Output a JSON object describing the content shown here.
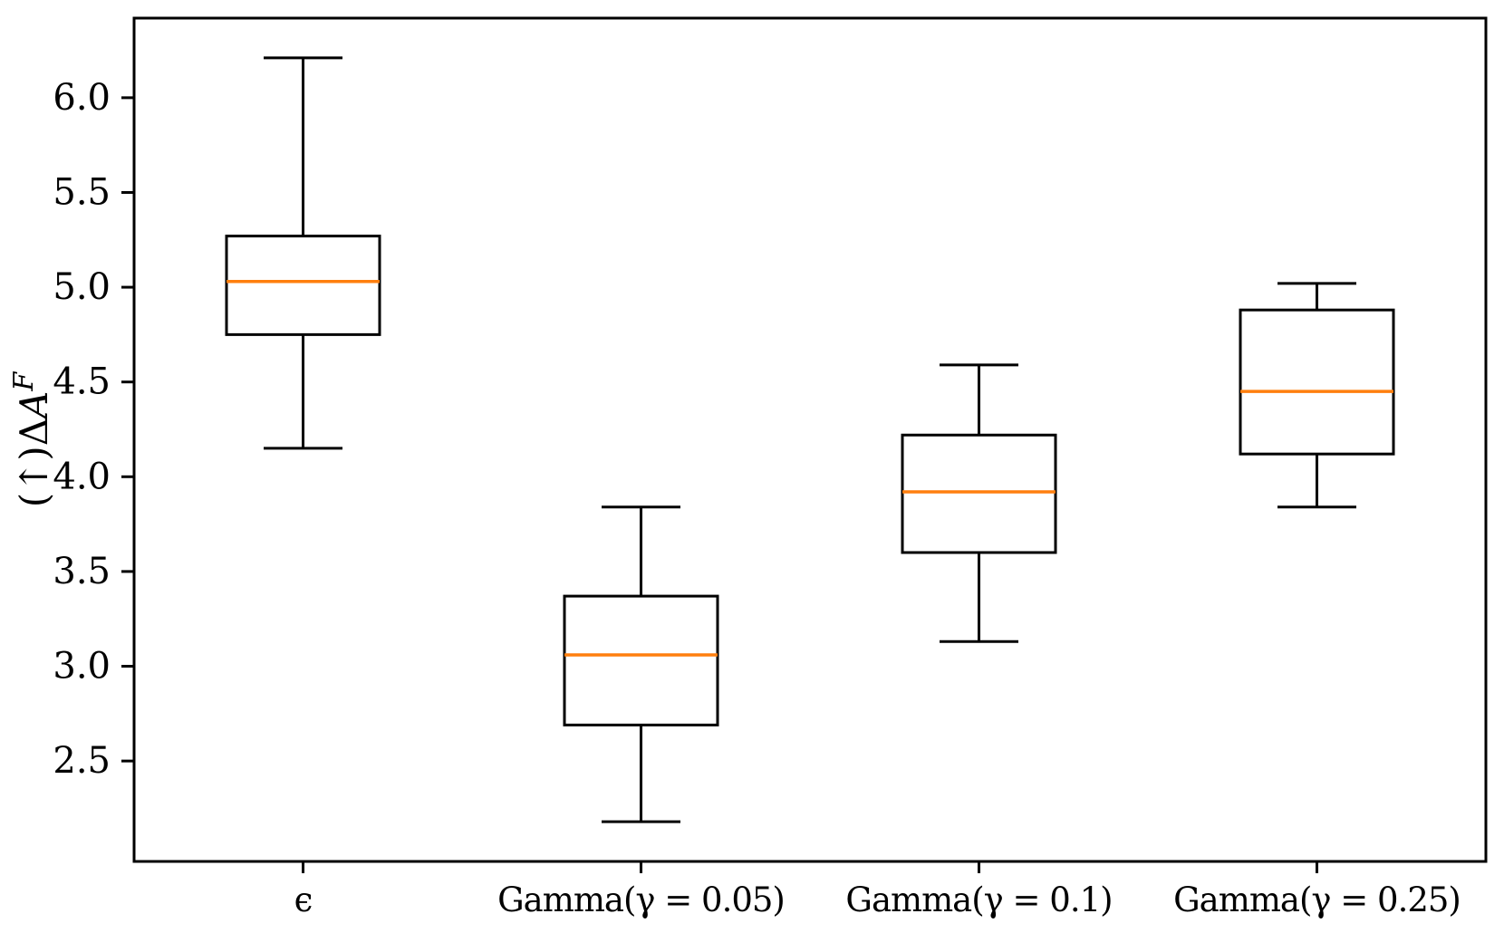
{
  "figure": {
    "background": "#ffffff"
  },
  "chart_data": {
    "type": "boxplot",
    "title": "",
    "xlabel": "",
    "ylabel": "(↑)ΔA^F",
    "ylabel_parts": [
      {
        "text": "(↑)Δ",
        "italic": false,
        "super": false
      },
      {
        "text": "A",
        "italic": true,
        "super": false
      },
      {
        "text": "F",
        "italic": true,
        "super": true
      }
    ],
    "categories": [
      "ϵ",
      "Gamma(γ = 0.05)",
      "Gamma(γ = 0.1)",
      "Gamma(γ = 0.25)"
    ],
    "series": [
      {
        "name": "ϵ",
        "whisker_low": 4.15,
        "q1": 4.75,
        "median": 5.03,
        "q3": 5.27,
        "whisker_high": 6.21
      },
      {
        "name": "Gamma(γ = 0.05)",
        "whisker_low": 2.18,
        "q1": 2.69,
        "median": 3.06,
        "q3": 3.37,
        "whisker_high": 3.84
      },
      {
        "name": "Gamma(γ = 0.1)",
        "whisker_low": 3.13,
        "q1": 3.6,
        "median": 3.92,
        "q3": 4.22,
        "whisker_high": 4.59
      },
      {
        "name": "Gamma(γ = 0.25)",
        "whisker_low": 3.84,
        "q1": 4.12,
        "median": 4.45,
        "q3": 4.88,
        "whisker_high": 5.02
      }
    ],
    "y_tick_labels": [
      "2.5",
      "3.0",
      "3.5",
      "4.0",
      "4.5",
      "5.0",
      "5.5",
      "6.0"
    ],
    "ylim": [
      1.97,
      6.42
    ],
    "grid": false,
    "legend": null,
    "colors": {
      "box_line": "#000000",
      "median_line": "#ff7f0e",
      "background": "#ffffff"
    }
  }
}
